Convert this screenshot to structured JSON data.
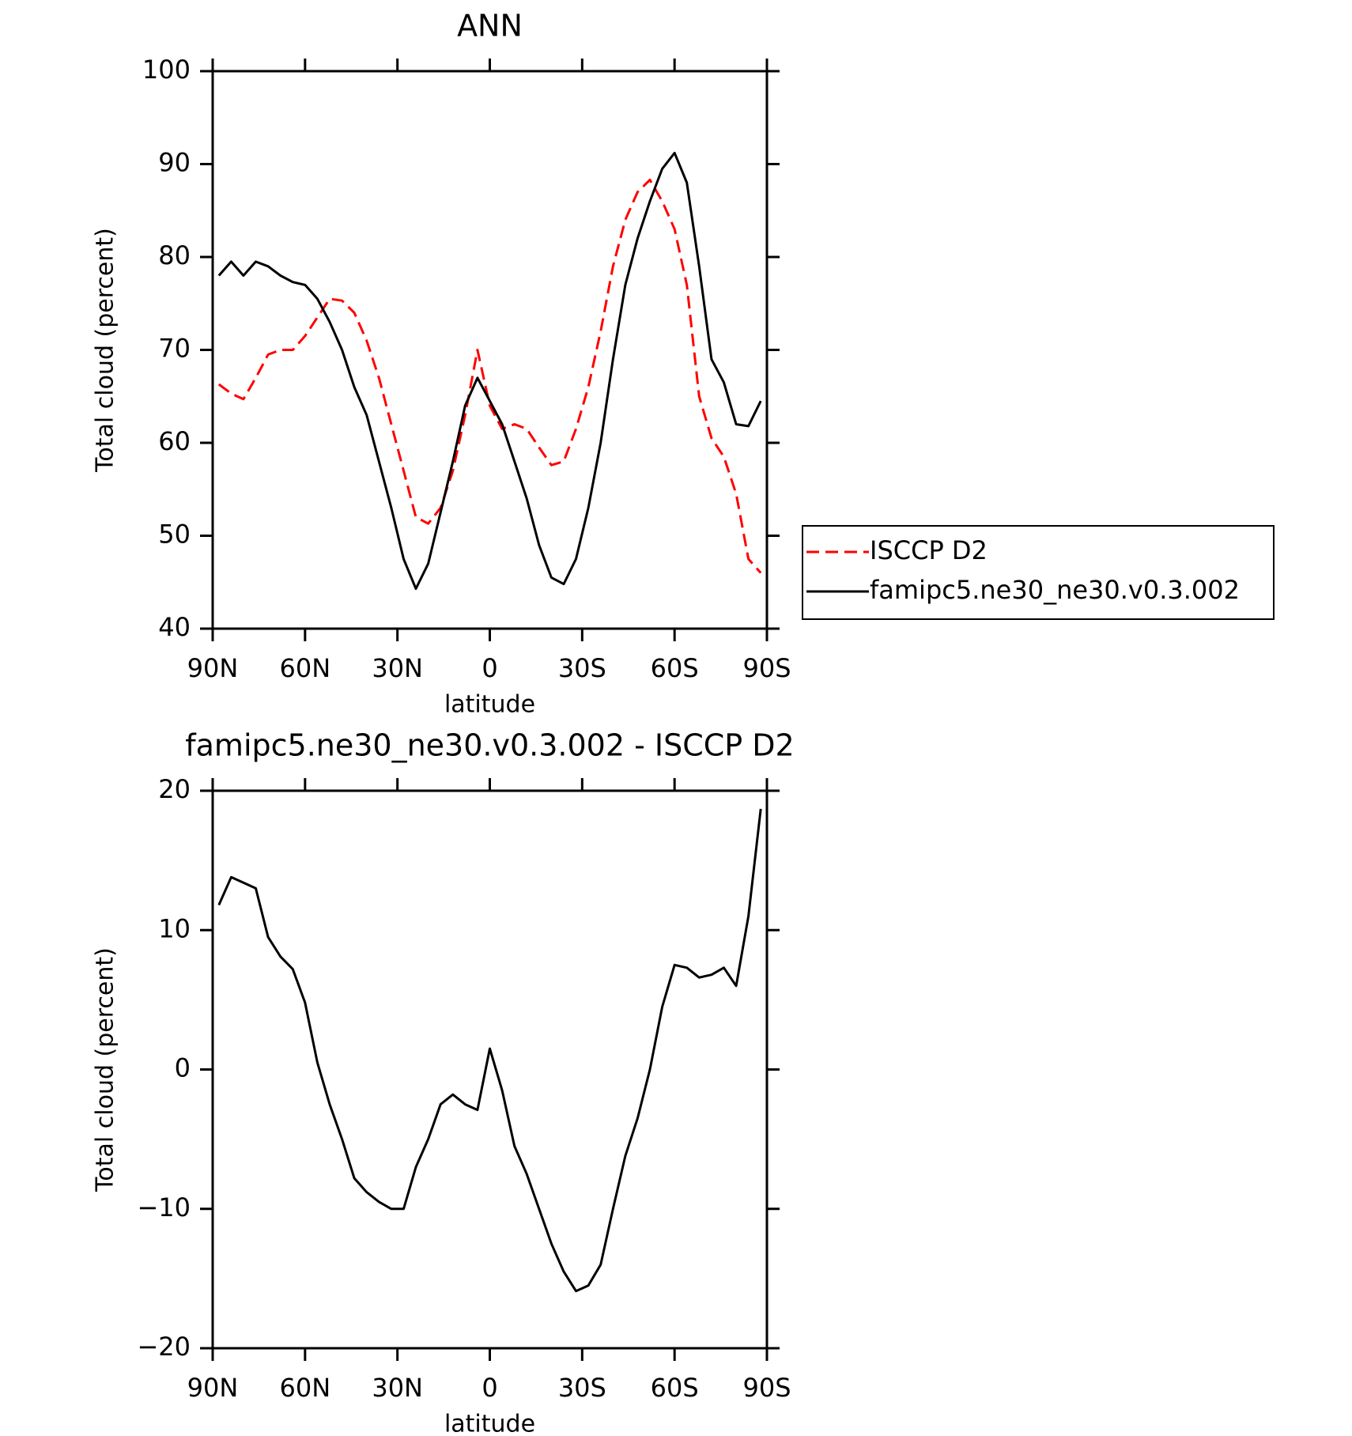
{
  "chart_data": [
    {
      "type": "line",
      "title": "ANN",
      "xlabel": "latitude",
      "ylabel": "Total cloud (percent)",
      "x": [
        88,
        84,
        80,
        76,
        72,
        68,
        64,
        60,
        56,
        52,
        48,
        44,
        40,
        36,
        32,
        28,
        24,
        20,
        16,
        12,
        8,
        4,
        0,
        -4,
        -8,
        -12,
        -16,
        -20,
        -24,
        -28,
        -32,
        -36,
        -40,
        -44,
        -48,
        -52,
        -56,
        -60,
        -64,
        -68,
        -72,
        -76,
        -80,
        -84,
        -88
      ],
      "series": [
        {
          "name": "ISCCP D2",
          "color": "#ff0000",
          "dash": "dashed",
          "values": [
            66.3,
            65.3,
            64.7,
            67,
            69.5,
            70,
            70,
            71.5,
            73.5,
            75.5,
            75.3,
            74,
            71,
            67,
            62,
            57,
            52,
            51.3,
            53,
            57,
            63,
            70,
            64,
            61.5,
            62,
            61.5,
            59.5,
            57.6,
            58,
            61.5,
            66,
            72,
            79,
            84,
            87,
            88.3,
            86,
            83,
            77,
            65,
            60.5,
            58.5,
            54.5,
            47.5,
            46
          ]
        },
        {
          "name": "famipc5.ne30_ne30.v0.3.002",
          "color": "#000000",
          "dash": "solid",
          "values": [
            78,
            79.5,
            78,
            79.5,
            79,
            78,
            77.3,
            77,
            75.5,
            73,
            70,
            66,
            63,
            58,
            53,
            47.5,
            44.3,
            47,
            52.5,
            58,
            64,
            67,
            64.5,
            62,
            58,
            54,
            49,
            45.5,
            44.8,
            47.5,
            53,
            60,
            69,
            77,
            82,
            86,
            89.5,
            91.2,
            88,
            79,
            69,
            66.5,
            62,
            61.8,
            64.5
          ]
        }
      ],
      "xlim": [
        90,
        -90
      ],
      "xticks": [
        {
          "value": 90,
          "label": "90N"
        },
        {
          "value": 60,
          "label": "60N"
        },
        {
          "value": 30,
          "label": "30N"
        },
        0,
        {
          "value": -30,
          "label": "30S"
        },
        {
          "value": -60,
          "label": "60S"
        },
        {
          "value": -90,
          "label": "90S"
        }
      ],
      "ylim": [
        40,
        100
      ],
      "yticks": [
        40,
        50,
        60,
        70,
        80,
        90,
        100
      ],
      "legend": "right"
    },
    {
      "type": "line",
      "title": "famipc5.ne30_ne30.v0.3.002 - ISCCP D2",
      "xlabel": "latitude",
      "ylabel": "Total cloud (percent)",
      "x": [
        88,
        84,
        80,
        76,
        72,
        68,
        64,
        60,
        56,
        52,
        48,
        44,
        40,
        36,
        32,
        28,
        24,
        20,
        16,
        12,
        8,
        4,
        0,
        -4,
        -8,
        -12,
        -16,
        -20,
        -24,
        -28,
        -32,
        -36,
        -40,
        -44,
        -48,
        -52,
        -56,
        -60,
        -64,
        -68,
        -72,
        -76,
        -80,
        -84,
        -88
      ],
      "color": "#000000",
      "values": [
        11.8,
        13.8,
        13.4,
        13,
        9.5,
        8.1,
        7.2,
        4.8,
        0.5,
        -2.5,
        -5,
        -7.8,
        -8.8,
        -9.5,
        -10,
        -10,
        -7,
        -5,
        -2.5,
        -1.8,
        -2.5,
        -2.9,
        1.5,
        -1.5,
        -5.5,
        -7.5,
        -10,
        -12.5,
        -14.5,
        -15.9,
        -15.5,
        -14,
        -10,
        -6.2,
        -3.5,
        0,
        4.5,
        7.5,
        7.3,
        6.6,
        6.8,
        7.3,
        6,
        11,
        18.7
      ],
      "xlim": [
        90,
        -90
      ],
      "xticks": [
        {
          "value": 90,
          "label": "90N"
        },
        {
          "value": 60,
          "label": "60N"
        },
        {
          "value": 30,
          "label": "30N"
        },
        0,
        {
          "value": -30,
          "label": "30S"
        },
        {
          "value": -60,
          "label": "60S"
        },
        {
          "value": -90,
          "label": "90S"
        }
      ],
      "ylim": [
        -20,
        20
      ],
      "yticks": [
        {
          "value": -20,
          "label": "−20"
        },
        {
          "value": -10,
          "label": "−10"
        },
        0,
        10,
        20
      ]
    }
  ]
}
